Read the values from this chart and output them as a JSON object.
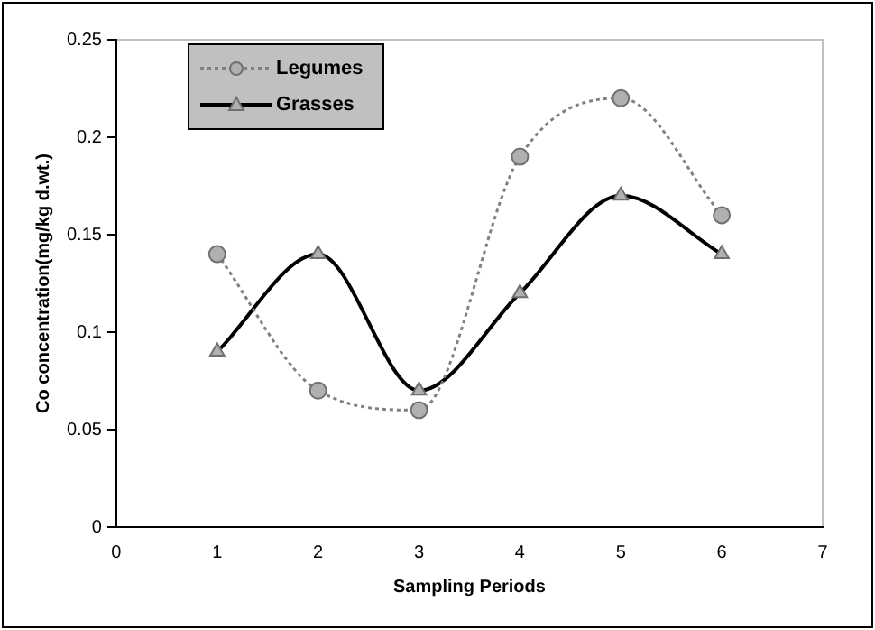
{
  "chart_data": {
    "type": "line",
    "xlabel": "Sampling Periods",
    "ylabel": "Co concentration(mg/kg d.wt.)",
    "xlim": [
      0,
      7
    ],
    "xticks": [
      0,
      1,
      2,
      3,
      4,
      5,
      6,
      7
    ],
    "ylim": [
      0,
      0.25
    ],
    "yticks": [
      0,
      0.05,
      0.1,
      0.15,
      0.2,
      0.25
    ],
    "grid": false,
    "legend": "top left",
    "series": [
      {
        "name": "Legumes",
        "color": "#808080",
        "line_style": "dotted",
        "marker": "circle",
        "x": [
          1,
          2,
          3,
          4,
          5,
          6
        ],
        "values": [
          0.14,
          0.07,
          0.06,
          0.19,
          0.22,
          0.16
        ]
      },
      {
        "name": "Grasses",
        "color": "#000000",
        "line_style": "solid",
        "marker": "triangle",
        "x": [
          1,
          2,
          3,
          4,
          5,
          6
        ],
        "values": [
          0.09,
          0.14,
          0.07,
          0.12,
          0.17,
          0.14
        ]
      }
    ]
  }
}
